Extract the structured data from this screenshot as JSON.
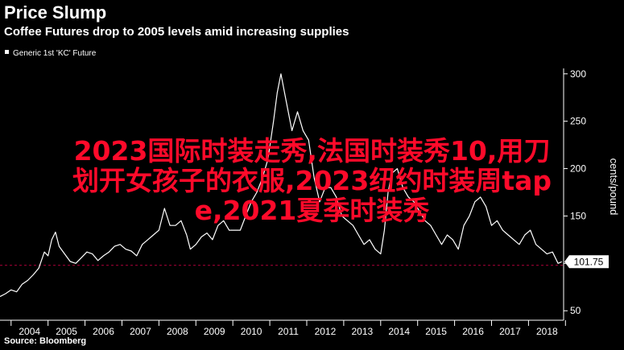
{
  "header": {
    "title": "Price Slump",
    "subtitle": "Coffee Futures drop to 2005 levels amid increasing supplies"
  },
  "footer": {
    "source": "Source: Bloomberg"
  },
  "overlay": {
    "lines": [
      "2023国际时装走秀,法国时装秀10,用刀",
      "划开女孩子的衣服,2023纽约时装周tap",
      "e,2021夏季时装秀"
    ]
  },
  "colors": {
    "background": "#000000",
    "line": "#ffffff",
    "reference": "#b0003a",
    "overlay_text": "#ff0a2a"
  },
  "chart_data": {
    "type": "line",
    "title": "Price Slump",
    "subtitle": "Coffee Futures drop to 2005 levels amid increasing supplies",
    "ylabel": "cents/pound",
    "xlabel": "",
    "xlim": [
      2003.7,
      2018.95
    ],
    "ylim": [
      40,
      310
    ],
    "x_ticks": [
      "2004",
      "2005",
      "2006",
      "2007",
      "2008",
      "2009",
      "2010",
      "2011",
      "2012",
      "2013",
      "2014",
      "2015",
      "2016",
      "2017",
      "2018"
    ],
    "y_ticks": [
      50,
      100,
      150,
      200,
      250,
      300
    ],
    "legend": {
      "position": "top-left",
      "entries": [
        "Generic 1st 'KC' Future"
      ]
    },
    "last_value_label": "101.75",
    "reference_line": 98,
    "grid": false,
    "series": [
      {
        "name": "Generic 1st 'KC' Future",
        "x": [
          2003.7,
          2003.85,
          2004.0,
          2004.15,
          2004.3,
          2004.45,
          2004.6,
          2004.75,
          2004.9,
          2005.0,
          2005.1,
          2005.2,
          2005.3,
          2005.45,
          2005.6,
          2005.75,
          2005.9,
          2006.05,
          2006.2,
          2006.35,
          2006.5,
          2006.65,
          2006.8,
          2006.95,
          2007.1,
          2007.25,
          2007.4,
          2007.55,
          2007.7,
          2007.85,
          2008.0,
          2008.15,
          2008.3,
          2008.45,
          2008.6,
          2008.75,
          2008.85,
          2009.0,
          2009.15,
          2009.3,
          2009.45,
          2009.6,
          2009.75,
          2009.9,
          2010.05,
          2010.2,
          2010.35,
          2010.5,
          2010.65,
          2010.8,
          2010.95,
          2011.1,
          2011.2,
          2011.3,
          2011.45,
          2011.6,
          2011.75,
          2011.9,
          2012.05,
          2012.2,
          2012.35,
          2012.5,
          2012.65,
          2012.8,
          2012.95,
          2013.1,
          2013.25,
          2013.4,
          2013.55,
          2013.7,
          2013.85,
          2014.0,
          2014.1,
          2014.2,
          2014.3,
          2014.45,
          2014.6,
          2014.75,
          2014.9,
          2015.05,
          2015.2,
          2015.35,
          2015.5,
          2015.65,
          2015.8,
          2015.95,
          2016.1,
          2016.25,
          2016.4,
          2016.55,
          2016.7,
          2016.85,
          2017.0,
          2017.15,
          2017.3,
          2017.45,
          2017.6,
          2017.75,
          2017.9,
          2018.05,
          2018.2,
          2018.35,
          2018.5,
          2018.65,
          2018.8,
          2018.9
        ],
        "values": [
          65,
          68,
          72,
          70,
          78,
          82,
          88,
          95,
          112,
          108,
          125,
          133,
          118,
          110,
          102,
          100,
          106,
          112,
          110,
          103,
          108,
          112,
          118,
          120,
          115,
          113,
          108,
          120,
          125,
          130,
          135,
          158,
          140,
          140,
          145,
          130,
          115,
          120,
          128,
          132,
          125,
          140,
          145,
          135,
          135,
          135,
          150,
          165,
          175,
          190,
          210,
          250,
          280,
          300,
          270,
          240,
          260,
          240,
          230,
          190,
          165,
          180,
          180,
          170,
          150,
          145,
          140,
          130,
          120,
          125,
          115,
          110,
          135,
          175,
          195,
          200,
          180,
          170,
          165,
          155,
          145,
          140,
          130,
          120,
          130,
          125,
          115,
          140,
          150,
          165,
          170,
          160,
          140,
          145,
          135,
          130,
          125,
          120,
          130,
          135,
          120,
          115,
          110,
          112,
          100,
          101.75
        ]
      }
    ]
  }
}
